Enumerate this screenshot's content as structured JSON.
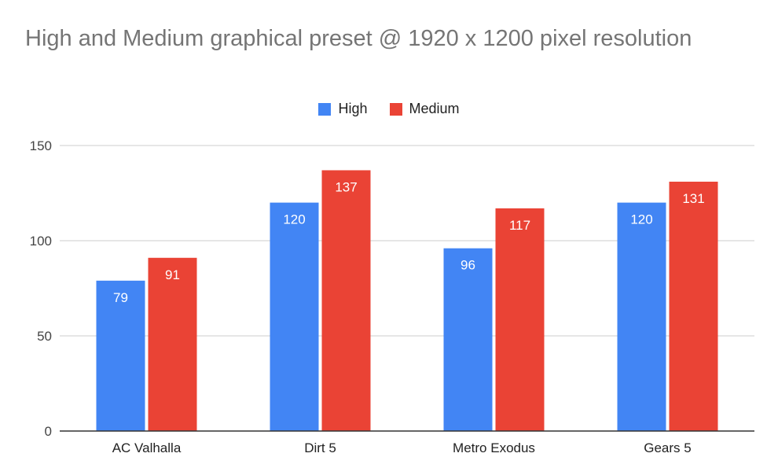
{
  "chart_data": {
    "type": "bar",
    "title": "High and Medium graphical preset @ 1920 x 1200 pixel resolution",
    "categories": [
      "AC Valhalla",
      "Dirt 5",
      "Metro Exodus",
      "Gears 5"
    ],
    "series": [
      {
        "name": "High",
        "values": [
          79,
          120,
          96,
          120
        ],
        "color": "#4285f4"
      },
      {
        "name": "Medium",
        "values": [
          91,
          137,
          117,
          131
        ],
        "color": "#ea4335"
      }
    ],
    "ylim": [
      0,
      150
    ],
    "yticks": [
      0,
      50,
      100,
      150
    ],
    "grid": true,
    "legend_position": "top",
    "data_labels": true
  },
  "colors": {
    "grid": "#cccccc",
    "axis": "#333333",
    "title": "#757575"
  }
}
